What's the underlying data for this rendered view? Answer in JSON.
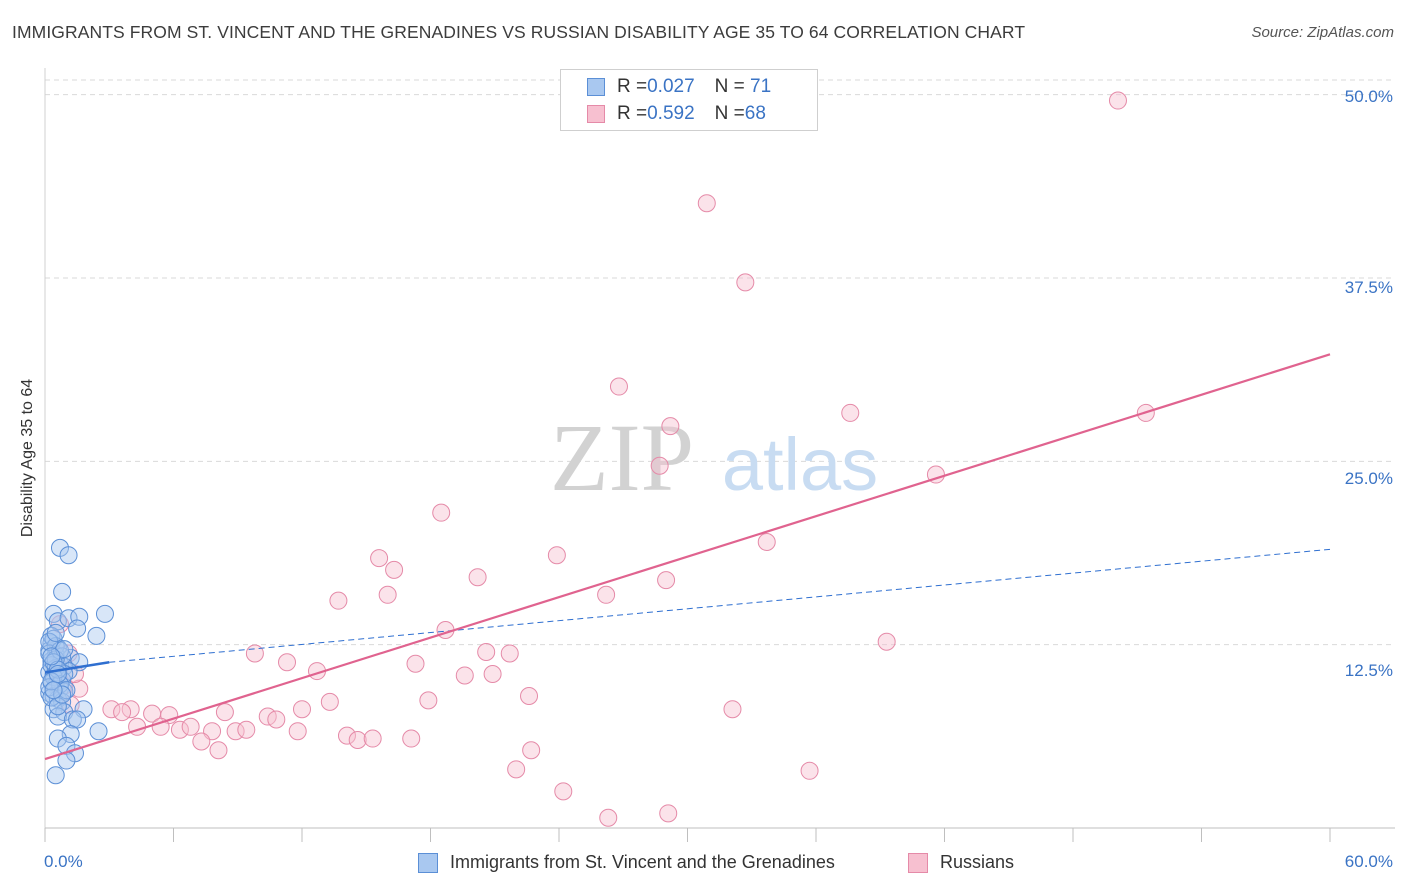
{
  "title": "IMMIGRANTS FROM ST. VINCENT AND THE GRENADINES VS RUSSIAN DISABILITY AGE 35 TO 64 CORRELATION CHART",
  "source": "Source: ZipAtlas.com",
  "watermark": {
    "zip": "ZIP",
    "atlas": "atlas"
  },
  "legend_top": {
    "rows": [
      {
        "r_label": "R = ",
        "r_value": "0.027",
        "n_label": "N = ",
        "n_value": " 71"
      },
      {
        "r_label": "R = ",
        "r_value": "0.592",
        "n_label": "N = ",
        "n_value": "68"
      }
    ]
  },
  "legend_bottom": {
    "series_1": "Immigrants from St. Vincent and the Grenadines",
    "series_2": "Russians"
  },
  "colors": {
    "blue_fill": "#a9c8f0",
    "blue_stroke": "#5b8fd6",
    "blue_line": "#2f6fd0",
    "pink_fill": "#f7c0d0",
    "pink_stroke": "#e58aa8",
    "pink_line": "#e0638f",
    "axis_text": "#3a73c4",
    "grid": "#d9d9d9"
  },
  "chart_data": {
    "type": "scatter",
    "title": "IMMIGRANTS FROM ST. VINCENT AND THE GRENADINES VS RUSSIAN DISABILITY AGE 35 TO 64 CORRELATION CHART",
    "xlabel": "",
    "ylabel": "Disability Age 35 to 64",
    "xlim": [
      0,
      60
    ],
    "ylim": [
      0,
      51
    ],
    "x_tick_labels": [
      "0.0%",
      "60.0%"
    ],
    "y_ticks": [
      12.5,
      25.0,
      37.5,
      50.0
    ],
    "y_tick_labels": [
      "12.5%",
      "25.0%",
      "37.5%",
      "50.0%"
    ],
    "grid": true,
    "legend_position": "top-center",
    "series": [
      {
        "name": "Immigrants from St. Vincent and the Grenadines",
        "color": "blue",
        "r": 0.027,
        "n": 71,
        "trend_solid": {
          "x": [
            0,
            3.0
          ],
          "y": [
            10.6,
            11.3
          ]
        },
        "trend_dashed": {
          "x": [
            3.0,
            60
          ],
          "y": [
            11.3,
            19.0
          ]
        },
        "points": [
          [
            0.7,
            19.1
          ],
          [
            1.1,
            18.6
          ],
          [
            0.8,
            16.1
          ],
          [
            0.4,
            14.6
          ],
          [
            0.6,
            14.1
          ],
          [
            1.1,
            14.3
          ],
          [
            1.6,
            14.4
          ],
          [
            2.8,
            14.6
          ],
          [
            1.5,
            13.6
          ],
          [
            2.4,
            13.1
          ],
          [
            0.3,
            12.6
          ],
          [
            0.6,
            12.3
          ],
          [
            0.2,
            12.1
          ],
          [
            0.5,
            11.8
          ],
          [
            1.2,
            11.6
          ],
          [
            1.6,
            11.3
          ],
          [
            0.3,
            11.4
          ],
          [
            0.7,
            11.2
          ],
          [
            0.9,
            11.0
          ],
          [
            1.1,
            10.7
          ],
          [
            0.2,
            10.6
          ],
          [
            0.4,
            10.4
          ],
          [
            0.6,
            10.2
          ],
          [
            0.8,
            10.1
          ],
          [
            0.3,
            9.9
          ],
          [
            0.5,
            9.7
          ],
          [
            0.7,
            9.5
          ],
          [
            0.9,
            9.3
          ],
          [
            0.2,
            9.2
          ],
          [
            0.4,
            9.0
          ],
          [
            0.6,
            8.8
          ],
          [
            0.8,
            8.6
          ],
          [
            0.4,
            8.1
          ],
          [
            0.9,
            7.9
          ],
          [
            1.8,
            8.1
          ],
          [
            0.6,
            7.6
          ],
          [
            1.3,
            7.4
          ],
          [
            1.5,
            7.4
          ],
          [
            2.5,
            6.6
          ],
          [
            1.2,
            6.4
          ],
          [
            0.6,
            6.1
          ],
          [
            1.0,
            5.6
          ],
          [
            1.4,
            5.1
          ],
          [
            1.0,
            4.6
          ],
          [
            0.5,
            3.6
          ],
          [
            0.3,
            13.1
          ],
          [
            0.4,
            12.9
          ],
          [
            0.5,
            12.4
          ],
          [
            0.2,
            11.9
          ],
          [
            0.8,
            11.7
          ],
          [
            0.3,
            11.1
          ],
          [
            0.5,
            10.9
          ],
          [
            0.9,
            10.5
          ],
          [
            0.4,
            10.3
          ],
          [
            0.7,
            9.8
          ],
          [
            0.2,
            9.6
          ],
          [
            1.0,
            9.4
          ],
          [
            0.3,
            8.9
          ],
          [
            0.6,
            8.3
          ],
          [
            0.5,
            11.5
          ],
          [
            0.7,
            12.1
          ],
          [
            0.4,
            11.3
          ],
          [
            0.6,
            10.8
          ],
          [
            0.3,
            10.0
          ],
          [
            0.8,
            9.1
          ],
          [
            0.2,
            12.7
          ],
          [
            0.5,
            13.3
          ],
          [
            0.9,
            12.2
          ],
          [
            0.4,
            9.4
          ],
          [
            0.6,
            10.5
          ],
          [
            0.3,
            11.7
          ]
        ]
      },
      {
        "name": "Russians",
        "color": "pink",
        "r": 0.592,
        "n": 68,
        "trend": {
          "x": [
            0,
            60
          ],
          "y": [
            4.7,
            32.3
          ]
        },
        "points": [
          [
            50.1,
            49.6
          ],
          [
            30.9,
            42.6
          ],
          [
            32.7,
            37.2
          ],
          [
            26.8,
            30.1
          ],
          [
            29.2,
            27.4
          ],
          [
            37.6,
            28.3
          ],
          [
            51.4,
            28.3
          ],
          [
            28.7,
            24.7
          ],
          [
            41.6,
            24.1
          ],
          [
            18.5,
            21.5
          ],
          [
            33.7,
            19.5
          ],
          [
            15.6,
            18.4
          ],
          [
            23.9,
            18.6
          ],
          [
            16.3,
            17.6
          ],
          [
            20.2,
            17.1
          ],
          [
            29.0,
            16.9
          ],
          [
            16.0,
            15.9
          ],
          [
            26.2,
            15.9
          ],
          [
            13.7,
            15.5
          ],
          [
            18.7,
            13.5
          ],
          [
            39.3,
            12.7
          ],
          [
            9.8,
            11.9
          ],
          [
            20.6,
            12.0
          ],
          [
            21.7,
            11.9
          ],
          [
            11.3,
            11.3
          ],
          [
            17.3,
            11.2
          ],
          [
            12.7,
            10.7
          ],
          [
            19.6,
            10.4
          ],
          [
            20.9,
            10.5
          ],
          [
            1.6,
            9.5
          ],
          [
            0.9,
            9.7
          ],
          [
            13.3,
            8.6
          ],
          [
            22.6,
            9.0
          ],
          [
            17.9,
            8.7
          ],
          [
            1.2,
            8.4
          ],
          [
            3.1,
            8.1
          ],
          [
            4.0,
            8.1
          ],
          [
            3.6,
            7.9
          ],
          [
            5.0,
            7.8
          ],
          [
            5.8,
            7.7
          ],
          [
            8.4,
            7.9
          ],
          [
            10.4,
            7.6
          ],
          [
            10.8,
            7.4
          ],
          [
            12.0,
            8.1
          ],
          [
            32.1,
            8.1
          ],
          [
            4.3,
            6.9
          ],
          [
            5.4,
            6.9
          ],
          [
            6.3,
            6.7
          ],
          [
            6.8,
            6.9
          ],
          [
            7.8,
            6.6
          ],
          [
            8.9,
            6.6
          ],
          [
            9.4,
            6.7
          ],
          [
            11.8,
            6.6
          ],
          [
            14.1,
            6.3
          ],
          [
            14.6,
            6.0
          ],
          [
            15.3,
            6.1
          ],
          [
            17.1,
            6.1
          ],
          [
            7.3,
            5.9
          ],
          [
            8.1,
            5.3
          ],
          [
            22.7,
            5.3
          ],
          [
            22.0,
            4.0
          ],
          [
            35.7,
            3.9
          ],
          [
            24.2,
            2.5
          ],
          [
            26.3,
            0.7
          ],
          [
            29.1,
            1.0
          ],
          [
            1.1,
            11.9
          ],
          [
            0.7,
            13.9
          ],
          [
            1.4,
            10.5
          ]
        ]
      }
    ]
  }
}
